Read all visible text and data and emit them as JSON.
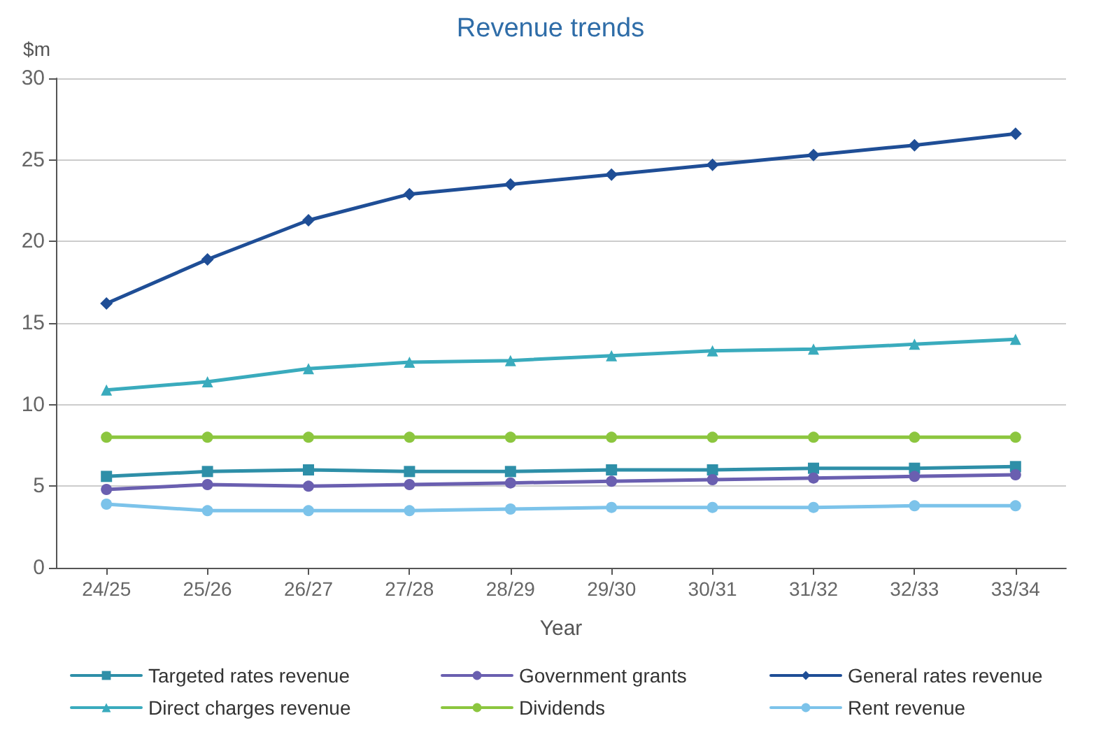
{
  "chart_data": {
    "type": "line",
    "title": "Revenue trends",
    "xlabel": "Year",
    "ylabel": "$m",
    "categories": [
      "24/25",
      "25/26",
      "26/27",
      "27/28",
      "28/29",
      "29/30",
      "30/31",
      "31/32",
      "32/33",
      "33/34"
    ],
    "series": [
      {
        "name": "Targeted rates revenue",
        "color": "#2e8fa8",
        "marker": "square",
        "values": [
          5.6,
          5.9,
          6.0,
          5.9,
          5.9,
          6.0,
          6.0,
          6.1,
          6.1,
          6.2
        ]
      },
      {
        "name": "Direct charges revenue",
        "color": "#3aabbd",
        "marker": "triangle",
        "values": [
          10.9,
          11.4,
          12.2,
          12.6,
          12.7,
          13.0,
          13.3,
          13.4,
          13.7,
          14.0
        ]
      },
      {
        "name": "Government grants",
        "color": "#6a5fb0",
        "marker": "circle",
        "values": [
          4.8,
          5.1,
          5.0,
          5.1,
          5.2,
          5.3,
          5.4,
          5.5,
          5.6,
          5.7
        ]
      },
      {
        "name": "Dividends",
        "color": "#8cc63f",
        "marker": "circle",
        "values": [
          8,
          8,
          8,
          8,
          8,
          8,
          8,
          8,
          8,
          8
        ]
      },
      {
        "name": "General rates revenue",
        "color": "#1f4e96",
        "marker": "diamond",
        "values": [
          16.2,
          18.9,
          21.3,
          22.9,
          23.5,
          24.1,
          24.7,
          25.3,
          25.9,
          26.6
        ]
      },
      {
        "name": "Rent revenue",
        "color": "#7cc3ea",
        "marker": "circle",
        "values": [
          3.9,
          3.5,
          3.5,
          3.5,
          3.6,
          3.7,
          3.7,
          3.7,
          3.8,
          3.8
        ]
      }
    ],
    "ylim": [
      0,
      30
    ],
    "yticks": [
      0,
      5,
      10,
      15,
      20,
      25,
      30
    ],
    "grid": "y",
    "legend": "bottom",
    "line_style": "solid"
  }
}
